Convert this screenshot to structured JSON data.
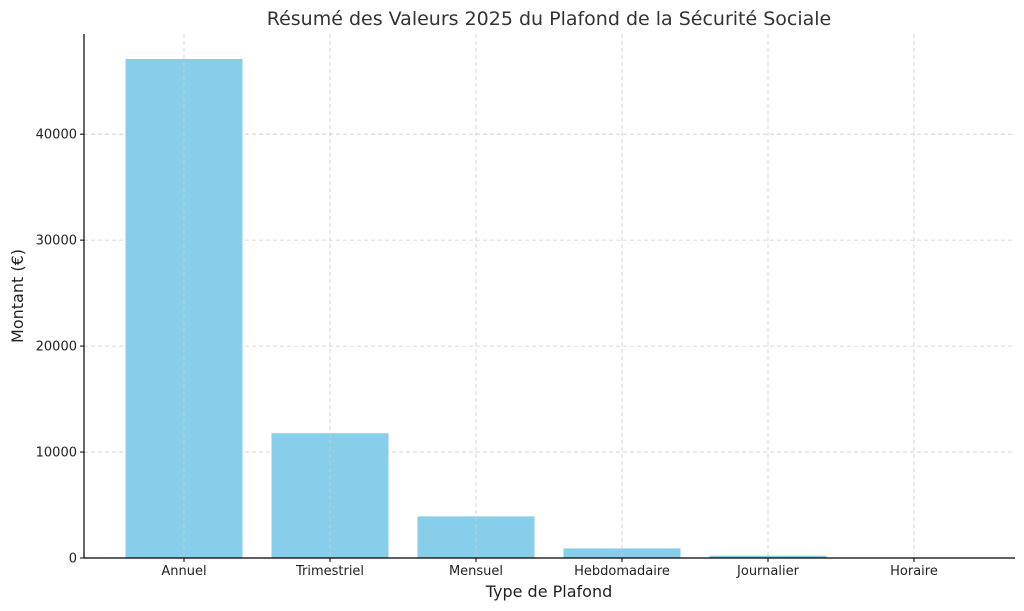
{
  "chart_data": {
    "type": "bar",
    "title": "Résumé des Valeurs 2025 du Plafond de la Sécurité Sociale",
    "xlabel": "Type de Plafond",
    "ylabel": "Montant (€)",
    "categories": [
      "Annuel",
      "Trimestriel",
      "Mensuel",
      "Hebdomadaire",
      "Journalier",
      "Horaire"
    ],
    "values": [
      47100,
      11775,
      3925,
      906,
      216,
      29
    ],
    "ylim": [
      0,
      49455
    ],
    "yticks": [
      0,
      10000,
      20000,
      30000,
      40000
    ],
    "ytick_labels": [
      "0",
      "10000",
      "20000",
      "30000",
      "40000"
    ],
    "bar_color": "#87CEEB",
    "grid": true
  }
}
